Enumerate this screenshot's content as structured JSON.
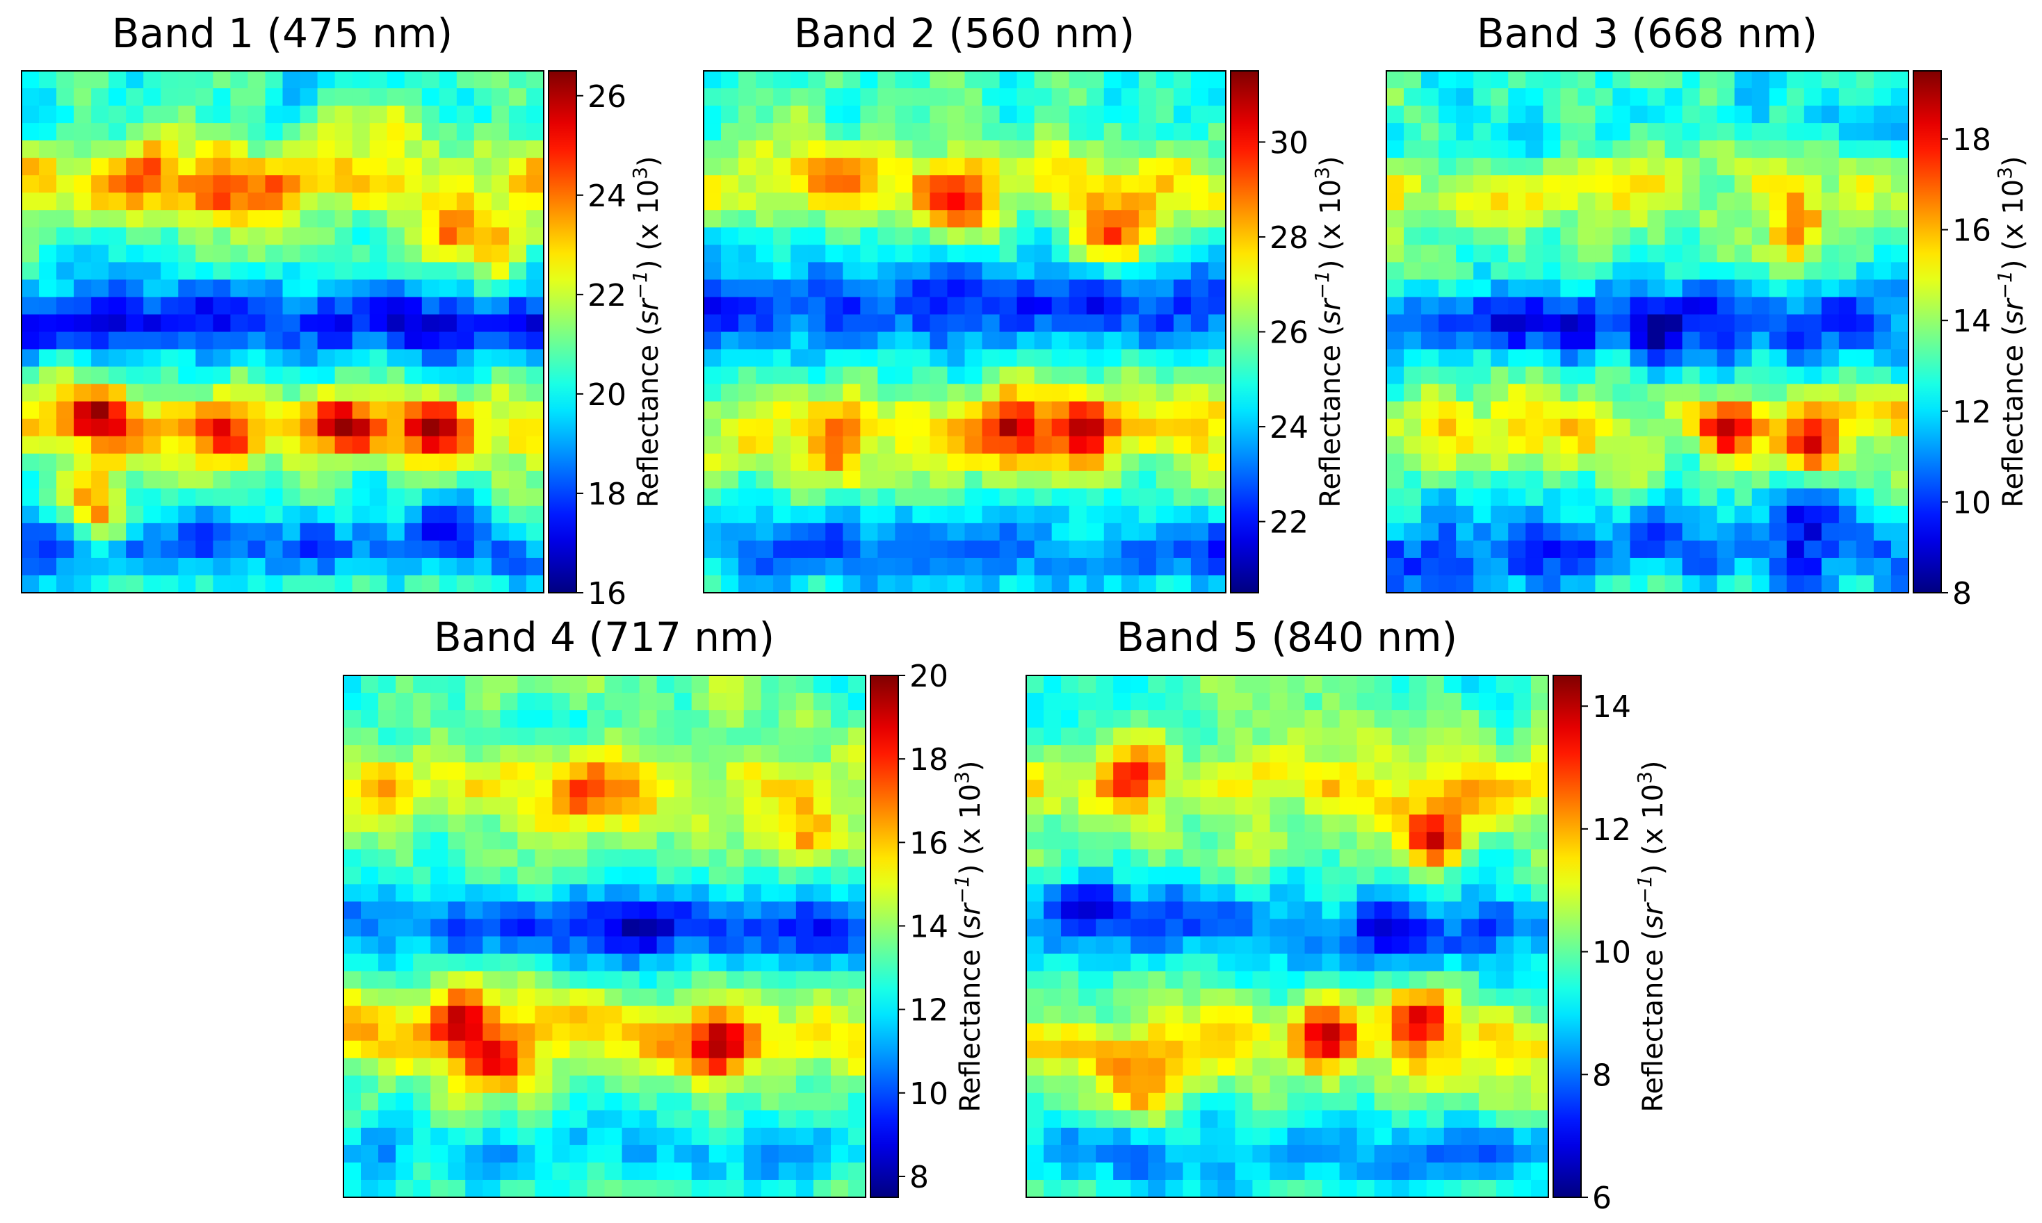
{
  "chart_data": [
    {
      "type": "heatmap",
      "title": "Band 1 (475 nm)",
      "colorbar": {
        "label_main": "Reflectance (",
        "label_unit_base": "sr",
        "label_unit_exp": "−1",
        "label_scale_open": ") (x 10",
        "label_scale_exp": "3",
        "label_scale_close": ")",
        "min": 16,
        "max": 26.5,
        "ticks": [
          16,
          18,
          20,
          22,
          24,
          26
        ],
        "tick_labels": [
          "16",
          "18",
          "20",
          "22",
          "24",
          "26"
        ]
      },
      "grid": {
        "rows": 30,
        "cols": 30,
        "seed": 11,
        "baseline": 0.42,
        "noise": 0.12,
        "bands": [
          {
            "row": 6,
            "width": 2.3,
            "amp": 0.22
          },
          {
            "row": 14,
            "width": 2.0,
            "amp": -0.26
          },
          {
            "row": 20,
            "width": 2.3,
            "amp": 0.25
          },
          {
            "row": 27,
            "width": 2.0,
            "amp": -0.17
          }
        ],
        "hotspots": [
          {
            "row": 5,
            "col": 7,
            "amp": 0.26
          },
          {
            "row": 6,
            "col": 11,
            "amp": 0.2
          },
          {
            "row": 7,
            "col": 14,
            "amp": 0.18
          },
          {
            "row": 3,
            "col": 20,
            "amp": 0.2
          },
          {
            "row": 9,
            "col": 24,
            "amp": 0.32
          },
          {
            "row": 10,
            "col": 27,
            "amp": 0.26
          },
          {
            "row": 19,
            "col": 4,
            "amp": 0.35
          },
          {
            "row": 20,
            "col": 11,
            "amp": 0.26
          },
          {
            "row": 20,
            "col": 18,
            "amp": 0.3
          },
          {
            "row": 20,
            "col": 23,
            "amp": 0.32
          },
          {
            "row": 25,
            "col": 4,
            "amp": 0.34
          },
          {
            "row": 26,
            "col": 24,
            "amp": -0.2
          }
        ]
      }
    },
    {
      "type": "heatmap",
      "title": "Band 2 (560 nm)",
      "colorbar": {
        "label_main": "Reflectance (",
        "label_unit_base": "sr",
        "label_unit_exp": "−1",
        "label_scale_open": ") (x 10",
        "label_scale_exp": "3",
        "label_scale_close": ")",
        "min": 20.5,
        "max": 31.5,
        "ticks": [
          22,
          24,
          26,
          28,
          30
        ],
        "tick_labels": [
          "22",
          "24",
          "26",
          "28",
          "30"
        ]
      },
      "grid": {
        "rows": 30,
        "cols": 30,
        "seed": 23,
        "baseline": 0.42,
        "noise": 0.11,
        "bands": [
          {
            "row": 6,
            "width": 2.5,
            "amp": 0.2
          },
          {
            "row": 13,
            "width": 2.4,
            "amp": -0.26
          },
          {
            "row": 20,
            "width": 2.6,
            "amp": 0.22
          },
          {
            "row": 27,
            "width": 2.0,
            "amp": -0.2
          }
        ],
        "hotspots": [
          {
            "row": 7,
            "col": 14,
            "amp": 0.34
          },
          {
            "row": 9,
            "col": 23,
            "amp": 0.4
          },
          {
            "row": 5,
            "col": 7,
            "amp": 0.18
          },
          {
            "row": 20,
            "col": 17,
            "amp": 0.3
          },
          {
            "row": 20,
            "col": 21,
            "amp": 0.34
          },
          {
            "row": 22,
            "col": 7,
            "amp": 0.2
          }
        ]
      }
    },
    {
      "type": "heatmap",
      "title": "Band 3 (668 nm)",
      "colorbar": {
        "label_main": "Reflectance (",
        "label_unit_base": "sr",
        "label_unit_exp": "−1",
        "label_scale_open": ") (x 10",
        "label_scale_exp": "3",
        "label_scale_close": ")",
        "min": 8,
        "max": 19.5,
        "ticks": [
          8,
          10,
          12,
          14,
          16,
          18
        ],
        "tick_labels": [
          "8",
          "10",
          "12",
          "14",
          "16",
          "18"
        ]
      },
      "grid": {
        "rows": 30,
        "cols": 30,
        "seed": 37,
        "baseline": 0.4,
        "noise": 0.13,
        "bands": [
          {
            "row": 7,
            "width": 2.4,
            "amp": 0.18
          },
          {
            "row": 14,
            "width": 2.2,
            "amp": -0.24
          },
          {
            "row": 20,
            "width": 2.4,
            "amp": 0.2
          },
          {
            "row": 27,
            "width": 2.0,
            "amp": -0.18
          }
        ],
        "hotspots": [
          {
            "row": 20,
            "col": 19,
            "amp": 0.4
          },
          {
            "row": 21,
            "col": 24,
            "amp": 0.38
          },
          {
            "row": 9,
            "col": 23,
            "amp": 0.26
          },
          {
            "row": 5,
            "col": 14,
            "amp": 0.2
          },
          {
            "row": 15,
            "col": 15,
            "amp": -0.2
          },
          {
            "row": 25,
            "col": 23,
            "amp": -0.22
          }
        ]
      }
    },
    {
      "type": "heatmap",
      "title": "Band 4 (717 nm)",
      "colorbar": {
        "label_main": "Reflectance (",
        "label_unit_base": "sr",
        "label_unit_exp": "−1",
        "label_scale_open": ") (x 10",
        "label_scale_exp": "3",
        "label_scale_close": ")",
        "min": 7.5,
        "max": 20,
        "ticks": [
          8,
          10,
          12,
          14,
          16,
          18,
          20
        ],
        "tick_labels": [
          "8",
          "10",
          "12",
          "14",
          "16",
          "18",
          "20"
        ]
      },
      "grid": {
        "rows": 30,
        "cols": 30,
        "seed": 53,
        "baseline": 0.45,
        "noise": 0.1,
        "bands": [
          {
            "row": 6,
            "width": 2.6,
            "amp": 0.18
          },
          {
            "row": 14,
            "width": 2.3,
            "amp": -0.24
          },
          {
            "row": 20,
            "width": 2.6,
            "amp": 0.2
          },
          {
            "row": 27,
            "width": 2.0,
            "amp": -0.14
          }
        ],
        "hotspots": [
          {
            "row": 21,
            "col": 21,
            "amp": 0.38
          },
          {
            "row": 22,
            "col": 8,
            "amp": 0.36
          },
          {
            "row": 6,
            "col": 14,
            "amp": 0.22
          },
          {
            "row": 9,
            "col": 26,
            "amp": 0.24
          },
          {
            "row": 19,
            "col": 6,
            "amp": 0.24
          },
          {
            "row": 14,
            "col": 17,
            "amp": -0.2
          }
        ]
      }
    },
    {
      "type": "heatmap",
      "title": "Band 5 (840 nm)",
      "colorbar": {
        "label_main": "Reflectance (",
        "label_unit_base": "sr",
        "label_unit_exp": "−1",
        "label_scale_open": ") (x 10",
        "label_scale_exp": "3",
        "label_scale_close": ")",
        "min": 6,
        "max": 14.5,
        "ticks": [
          6,
          8,
          10,
          12,
          14
        ],
        "tick_labels": [
          "6",
          "8",
          "10",
          "12",
          "14"
        ]
      },
      "grid": {
        "rows": 30,
        "cols": 30,
        "seed": 71,
        "baseline": 0.45,
        "noise": 0.11,
        "bands": [
          {
            "row": 6,
            "width": 2.5,
            "amp": 0.16
          },
          {
            "row": 14,
            "width": 2.2,
            "amp": -0.22
          },
          {
            "row": 21,
            "width": 2.6,
            "amp": 0.18
          },
          {
            "row": 27,
            "width": 2.0,
            "amp": -0.16
          }
        ],
        "hotspots": [
          {
            "row": 9,
            "col": 23,
            "amp": 0.34
          },
          {
            "row": 20,
            "col": 17,
            "amp": 0.34
          },
          {
            "row": 19,
            "col": 22,
            "amp": 0.36
          },
          {
            "row": 5,
            "col": 6,
            "amp": 0.22
          },
          {
            "row": 24,
            "col": 6,
            "amp": 0.24
          },
          {
            "row": 12,
            "col": 3,
            "amp": -0.22
          },
          {
            "row": 14,
            "col": 20,
            "amp": -0.22
          }
        ]
      }
    }
  ]
}
